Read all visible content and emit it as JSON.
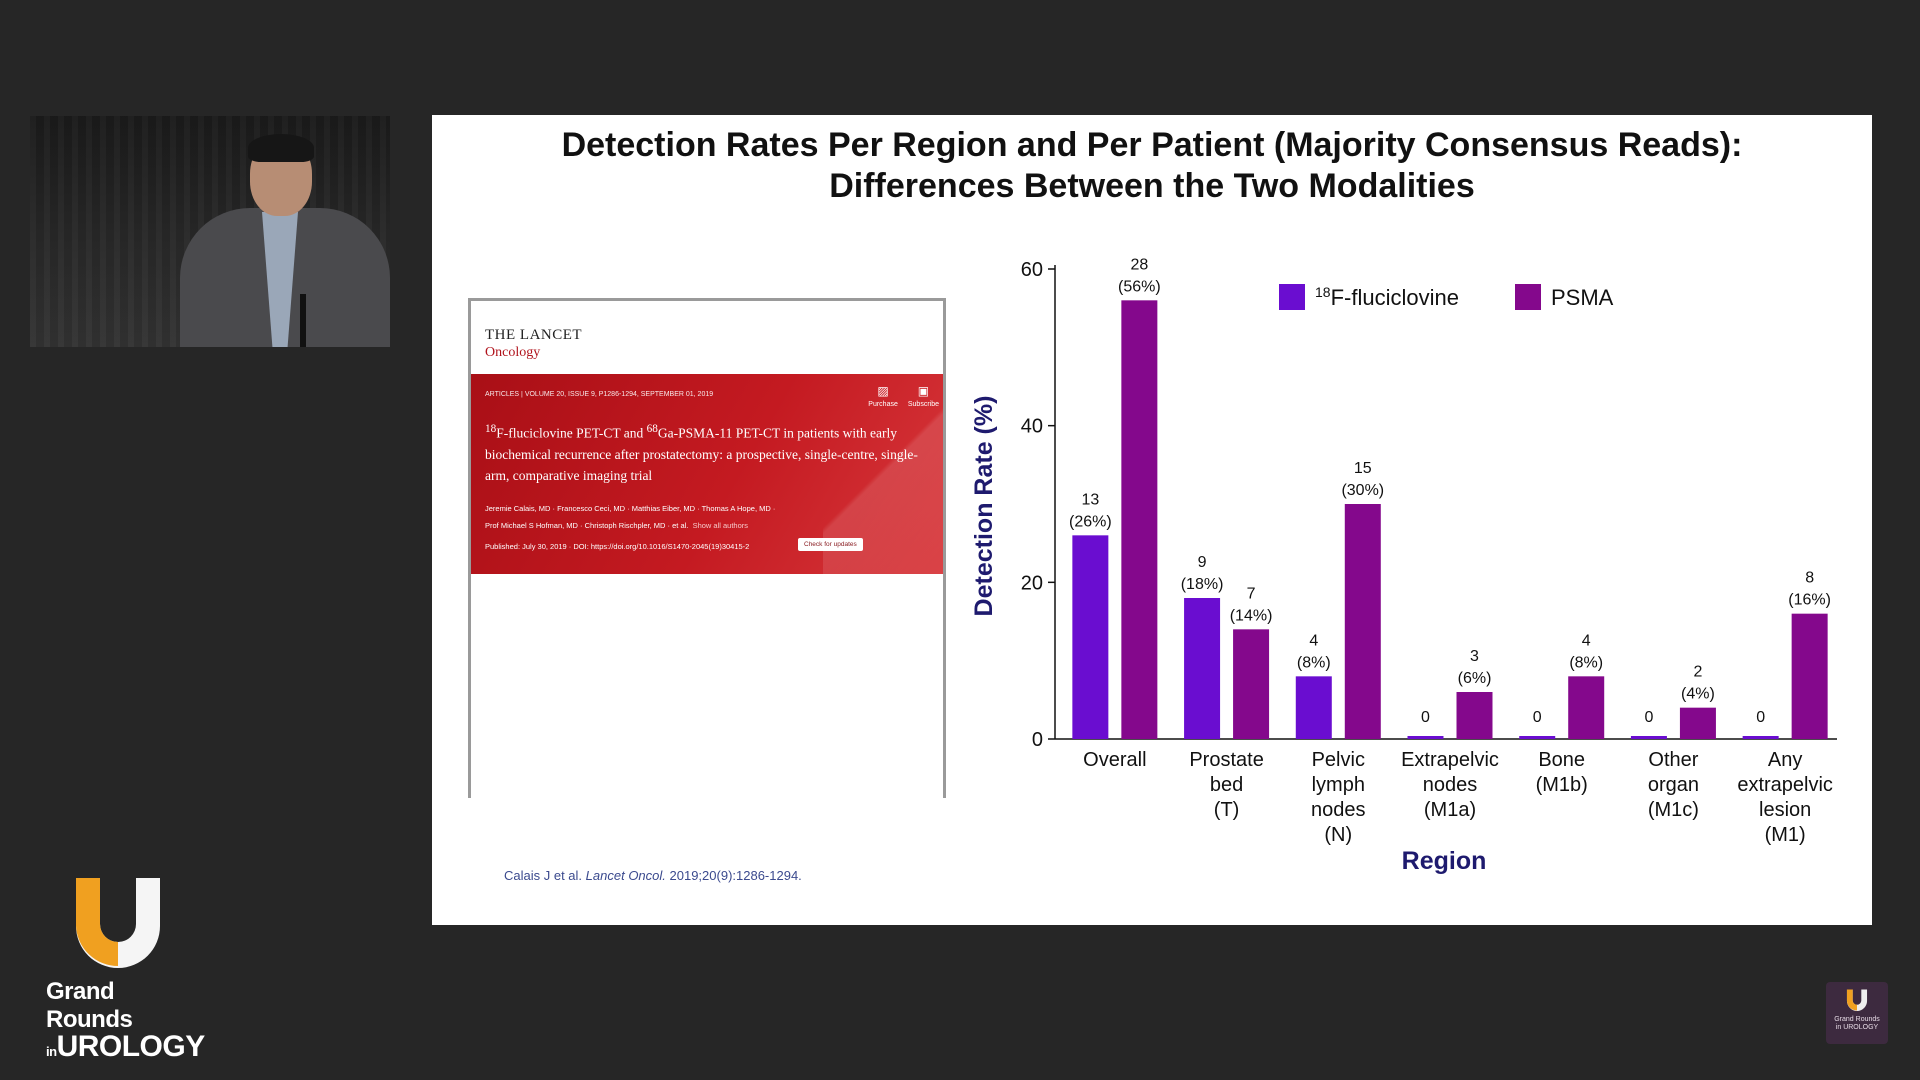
{
  "slide": {
    "title_line1": "Detection Rates Per Region and Per Patient (Majority Consensus Reads):",
    "title_line2": "Differences Between the Two Modalities",
    "citation_authors": "Calais J et al.",
    "citation_journal": "Lancet Oncol.",
    "citation_ref": "2019;20(9):1286-1294."
  },
  "paper_thumbnail": {
    "journal": "THE LANCET",
    "sub_journal": "Oncology",
    "meta": "ARTICLES  |  VOLUME 20, ISSUE 9, P1286-1294, SEPTEMBER 01, 2019",
    "purchase_label": "Purchase",
    "subscribe_label": "Subscribe",
    "article_title_sup1": "18",
    "article_title_part1": "F-fluciclovine PET-CT and ",
    "article_title_sup2": "68",
    "article_title_part2": "Ga-PSMA-11 PET-CT in patients with early biochemical recurrence after prostatectomy: a prospective, single-centre, single-arm, comparative imaging trial",
    "authors_line1": "Jeremie Calais, MD  ·  Francesco Ceci, MD  ·  Matthias Eiber, MD  ·  Thomas A Hope, MD  ·",
    "authors_line2": "Prof Michael S Hofman, MD  ·  Christoph Rischpler, MD  ·  et al.",
    "show_all": "Show all authors",
    "published": "Published: July 30, 2019  ·  DOI: https://doi.org/10.1016/S1470-2045(19)30415-2",
    "check_updates": "Check for updates"
  },
  "branding": {
    "line1": "Grand Rounds",
    "line2_prefix": "in",
    "line2": "UROLOGY",
    "watermark_line1": "Grand Rounds",
    "watermark_line2": "in UROLOGY"
  },
  "colors": {
    "fluciclovine": "#6a0dd0",
    "psma": "#84088c",
    "axis_title": "#1e1a6e"
  },
  "chart_data": {
    "type": "bar",
    "ylabel": "Detection Rate (%)",
    "xlabel": "Region",
    "ylim": [
      0,
      60
    ],
    "yticks": [
      0,
      20,
      40,
      60
    ],
    "legend_position": "top",
    "categories": [
      [
        "Overall"
      ],
      [
        "Prostate",
        "bed",
        "(T)"
      ],
      [
        "Pelvic",
        "lymph",
        "nodes",
        "(N)"
      ],
      [
        "Extrapelvic",
        "nodes",
        "(M1a)"
      ],
      [
        "Bone",
        "(M1b)"
      ],
      [
        "Other",
        "organ",
        "(M1c)"
      ],
      [
        "Any",
        "extrapelvic",
        "lesion",
        "(M1)"
      ]
    ],
    "series": [
      {
        "name_sup": "18",
        "name": "F-fluciclovine",
        "color": "#6a0dd0",
        "values": [
          26,
          18,
          8,
          0,
          0,
          0,
          0
        ],
        "counts": [
          "13",
          "9",
          "4",
          "0",
          "0",
          "0",
          "0"
        ],
        "pct_labels": [
          "(26%)",
          "(18%)",
          "(8%)",
          "",
          "",
          "",
          ""
        ]
      },
      {
        "name": "PSMA",
        "color": "#84088c",
        "values": [
          56,
          14,
          30,
          6,
          8,
          4,
          16
        ],
        "counts": [
          "28",
          "7",
          "15",
          "3",
          "4",
          "2",
          "8"
        ],
        "pct_labels": [
          "(56%)",
          "(14%)",
          "(30%)",
          "(6%)",
          "(8%)",
          "(4%)",
          "(16%)"
        ]
      }
    ]
  }
}
